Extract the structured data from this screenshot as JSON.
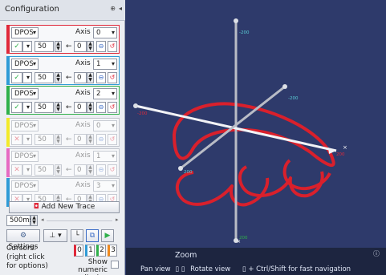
{
  "panel": {
    "title": "Configuration",
    "pin_icon": "pin-icon",
    "collapse_icon": "collapse-arrow-icon"
  },
  "traces": [
    {
      "source": "DPOS",
      "axis_label": "Axis",
      "axis": "0",
      "value": "50",
      "offset": "0",
      "color": "#e0283a",
      "enabled": true
    },
    {
      "source": "DPOS",
      "axis_label": "Axis",
      "axis": "1",
      "value": "50",
      "offset": "0",
      "color": "#2f9bd6",
      "enabled": true
    },
    {
      "source": "DPOS",
      "axis_label": "Axis",
      "axis": "2",
      "value": "50",
      "offset": "0",
      "color": "#2fb04a",
      "enabled": true
    },
    {
      "source": "DPOS",
      "axis_label": "Axis",
      "axis": "0",
      "value": "50",
      "offset": "0",
      "color": "#f3ea2b",
      "enabled": false
    },
    {
      "source": "DPOS",
      "axis_label": "Axis",
      "axis": "1",
      "value": "50",
      "offset": "0",
      "color": "#e66ac2",
      "enabled": false
    },
    {
      "source": "DPOS",
      "axis_label": "Axis",
      "axis": "3",
      "value": "50",
      "offset": "0",
      "color": "#2f9bd6",
      "enabled": false
    }
  ],
  "add_trace": "Add New Trace",
  "timebase": "500ms",
  "settings_label": "Settings",
  "cursors": {
    "label_line1": "Cursors:",
    "label_line2": "(right click",
    "label_line3": "for options)",
    "items": [
      "0",
      "1",
      "2",
      "3"
    ],
    "colors": [
      "#e0283a",
      "#2f9bd6",
      "#2fb04a",
      "#f08a1e"
    ]
  },
  "show_numeric_line1": "Show numeric",
  "show_numeric_line2": "display",
  "zoombar": {
    "title": "Zoom",
    "pan": "Pan view",
    "rotate": "Rotate view",
    "ctrl": "+ Ctrl/Shift for fast navigation"
  },
  "axis_labels": {
    "top": "-200",
    "right_back": "-200",
    "left": "-200",
    "front": "200",
    "bottom": "200",
    "right": "200"
  },
  "colors": {
    "viewport_bg": "#2e3a6b",
    "trace_path": "#d9202c"
  }
}
